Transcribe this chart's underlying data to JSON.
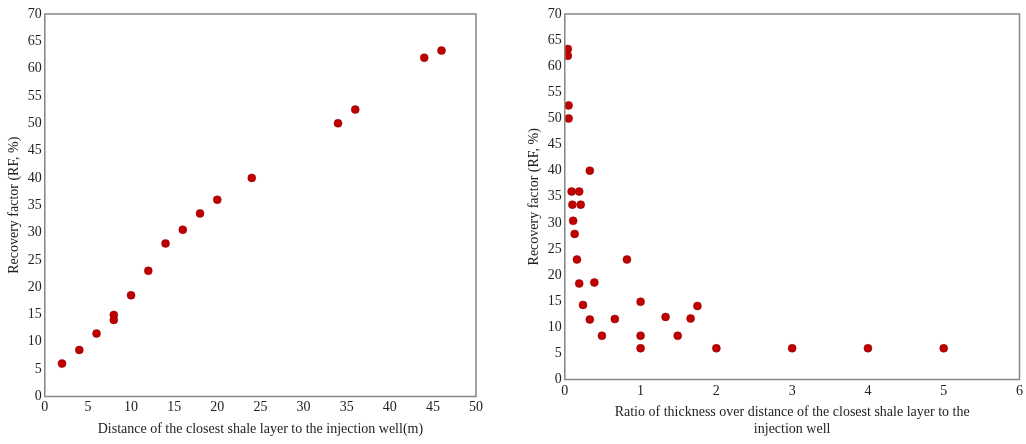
{
  "chart_data": [
    {
      "type": "scatter",
      "xlabel": "Distance of the closest shale layer to the injection well(m)",
      "ylabel": "Recovery factor (RF, %)",
      "marker": "circle",
      "grid": false,
      "series": [
        {
          "color": "#c00000",
          "x": [
            2,
            4,
            6,
            8,
            8,
            10,
            12,
            14,
            16,
            18,
            20,
            24,
            34,
            36,
            44,
            46
          ],
          "values": [
            6,
            8.5,
            11.5,
            14,
            14.9,
            18.5,
            23,
            28,
            30.5,
            33.5,
            36,
            40,
            50,
            52.5,
            62,
            63.3
          ]
        }
      ],
      "xlim": [
        0,
        50
      ],
      "xticks": [
        0,
        5,
        10,
        15,
        20,
        25,
        30,
        35,
        40,
        45,
        50
      ],
      "ylim": [
        0,
        70
      ],
      "yticks": [
        0,
        5,
        10,
        15,
        20,
        25,
        30,
        35,
        40,
        45,
        50,
        55,
        60,
        65,
        70
      ]
    },
    {
      "type": "scatter",
      "xlabel": "Ratio of thickness over distance of the closest shale layer to the injection well",
      "ylabel": "Recovery factor (RF, %)",
      "marker": "circle",
      "grid": false,
      "series": [
        {
          "color": "#c00000",
          "x": [
            0.04,
            0.04,
            0.05,
            0.05,
            0.33,
            0.09,
            0.19,
            0.1,
            0.21,
            0.11,
            0.13,
            0.16,
            0.82,
            0.19,
            0.39,
            0.24,
            1,
            1.75,
            0.33,
            0.66,
            1.33,
            1.66,
            0.49,
            1,
            1.49,
            1,
            2,
            3,
            4,
            5
          ],
          "values": [
            63.3,
            62,
            52.5,
            50,
            40,
            36,
            36,
            33.5,
            33.5,
            30.4,
            27.9,
            23,
            23,
            18.4,
            18.6,
            14.3,
            14.9,
            14.1,
            11.5,
            11.6,
            12,
            11.7,
            8.4,
            8.4,
            8.4,
            6,
            6,
            6,
            6,
            6
          ]
        }
      ],
      "xlim": [
        0,
        6
      ],
      "xticks": [
        0,
        1,
        2,
        3,
        4,
        5,
        6
      ],
      "ylim": [
        0,
        70
      ],
      "yticks": [
        0,
        5,
        10,
        15,
        20,
        25,
        30,
        35,
        40,
        45,
        50,
        55,
        60,
        65,
        70
      ]
    }
  ]
}
